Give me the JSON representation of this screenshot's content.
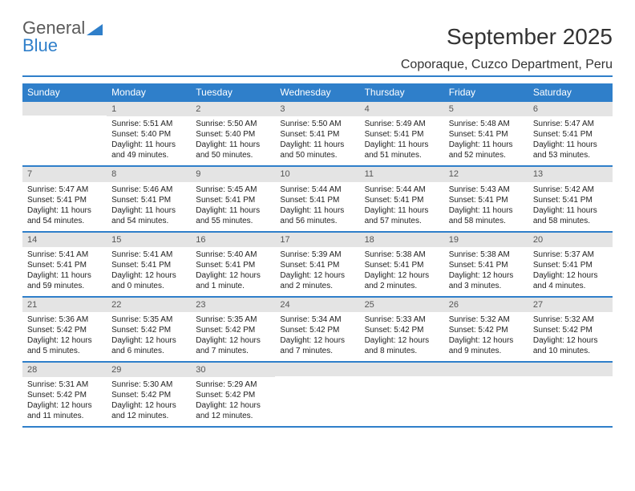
{
  "logo": {
    "text1": "General",
    "text2": "Blue"
  },
  "title": "September 2025",
  "subtitle": "Coporaque, Cuzco Department, Peru",
  "colors": {
    "accent": "#2f7fca",
    "daynum_bg": "#e4e4e4"
  },
  "day_headers": [
    "Sunday",
    "Monday",
    "Tuesday",
    "Wednesday",
    "Thursday",
    "Friday",
    "Saturday"
  ],
  "weeks": [
    [
      null,
      {
        "n": "1",
        "sr": "5:51 AM",
        "ss": "5:40 PM",
        "dl": "11 hours and 49 minutes."
      },
      {
        "n": "2",
        "sr": "5:50 AM",
        "ss": "5:40 PM",
        "dl": "11 hours and 50 minutes."
      },
      {
        "n": "3",
        "sr": "5:50 AM",
        "ss": "5:41 PM",
        "dl": "11 hours and 50 minutes."
      },
      {
        "n": "4",
        "sr": "5:49 AM",
        "ss": "5:41 PM",
        "dl": "11 hours and 51 minutes."
      },
      {
        "n": "5",
        "sr": "5:48 AM",
        "ss": "5:41 PM",
        "dl": "11 hours and 52 minutes."
      },
      {
        "n": "6",
        "sr": "5:47 AM",
        "ss": "5:41 PM",
        "dl": "11 hours and 53 minutes."
      }
    ],
    [
      {
        "n": "7",
        "sr": "5:47 AM",
        "ss": "5:41 PM",
        "dl": "11 hours and 54 minutes."
      },
      {
        "n": "8",
        "sr": "5:46 AM",
        "ss": "5:41 PM",
        "dl": "11 hours and 54 minutes."
      },
      {
        "n": "9",
        "sr": "5:45 AM",
        "ss": "5:41 PM",
        "dl": "11 hours and 55 minutes."
      },
      {
        "n": "10",
        "sr": "5:44 AM",
        "ss": "5:41 PM",
        "dl": "11 hours and 56 minutes."
      },
      {
        "n": "11",
        "sr": "5:44 AM",
        "ss": "5:41 PM",
        "dl": "11 hours and 57 minutes."
      },
      {
        "n": "12",
        "sr": "5:43 AM",
        "ss": "5:41 PM",
        "dl": "11 hours and 58 minutes."
      },
      {
        "n": "13",
        "sr": "5:42 AM",
        "ss": "5:41 PM",
        "dl": "11 hours and 58 minutes."
      }
    ],
    [
      {
        "n": "14",
        "sr": "5:41 AM",
        "ss": "5:41 PM",
        "dl": "11 hours and 59 minutes."
      },
      {
        "n": "15",
        "sr": "5:41 AM",
        "ss": "5:41 PM",
        "dl": "12 hours and 0 minutes."
      },
      {
        "n": "16",
        "sr": "5:40 AM",
        "ss": "5:41 PM",
        "dl": "12 hours and 1 minute."
      },
      {
        "n": "17",
        "sr": "5:39 AM",
        "ss": "5:41 PM",
        "dl": "12 hours and 2 minutes."
      },
      {
        "n": "18",
        "sr": "5:38 AM",
        "ss": "5:41 PM",
        "dl": "12 hours and 2 minutes."
      },
      {
        "n": "19",
        "sr": "5:38 AM",
        "ss": "5:41 PM",
        "dl": "12 hours and 3 minutes."
      },
      {
        "n": "20",
        "sr": "5:37 AM",
        "ss": "5:41 PM",
        "dl": "12 hours and 4 minutes."
      }
    ],
    [
      {
        "n": "21",
        "sr": "5:36 AM",
        "ss": "5:42 PM",
        "dl": "12 hours and 5 minutes."
      },
      {
        "n": "22",
        "sr": "5:35 AM",
        "ss": "5:42 PM",
        "dl": "12 hours and 6 minutes."
      },
      {
        "n": "23",
        "sr": "5:35 AM",
        "ss": "5:42 PM",
        "dl": "12 hours and 7 minutes."
      },
      {
        "n": "24",
        "sr": "5:34 AM",
        "ss": "5:42 PM",
        "dl": "12 hours and 7 minutes."
      },
      {
        "n": "25",
        "sr": "5:33 AM",
        "ss": "5:42 PM",
        "dl": "12 hours and 8 minutes."
      },
      {
        "n": "26",
        "sr": "5:32 AM",
        "ss": "5:42 PM",
        "dl": "12 hours and 9 minutes."
      },
      {
        "n": "27",
        "sr": "5:32 AM",
        "ss": "5:42 PM",
        "dl": "12 hours and 10 minutes."
      }
    ],
    [
      {
        "n": "28",
        "sr": "5:31 AM",
        "ss": "5:42 PM",
        "dl": "12 hours and 11 minutes."
      },
      {
        "n": "29",
        "sr": "5:30 AM",
        "ss": "5:42 PM",
        "dl": "12 hours and 12 minutes."
      },
      {
        "n": "30",
        "sr": "5:29 AM",
        "ss": "5:42 PM",
        "dl": "12 hours and 12 minutes."
      },
      null,
      null,
      null,
      null
    ]
  ],
  "labels": {
    "sunrise": "Sunrise:",
    "sunset": "Sunset:",
    "daylight": "Daylight:"
  }
}
